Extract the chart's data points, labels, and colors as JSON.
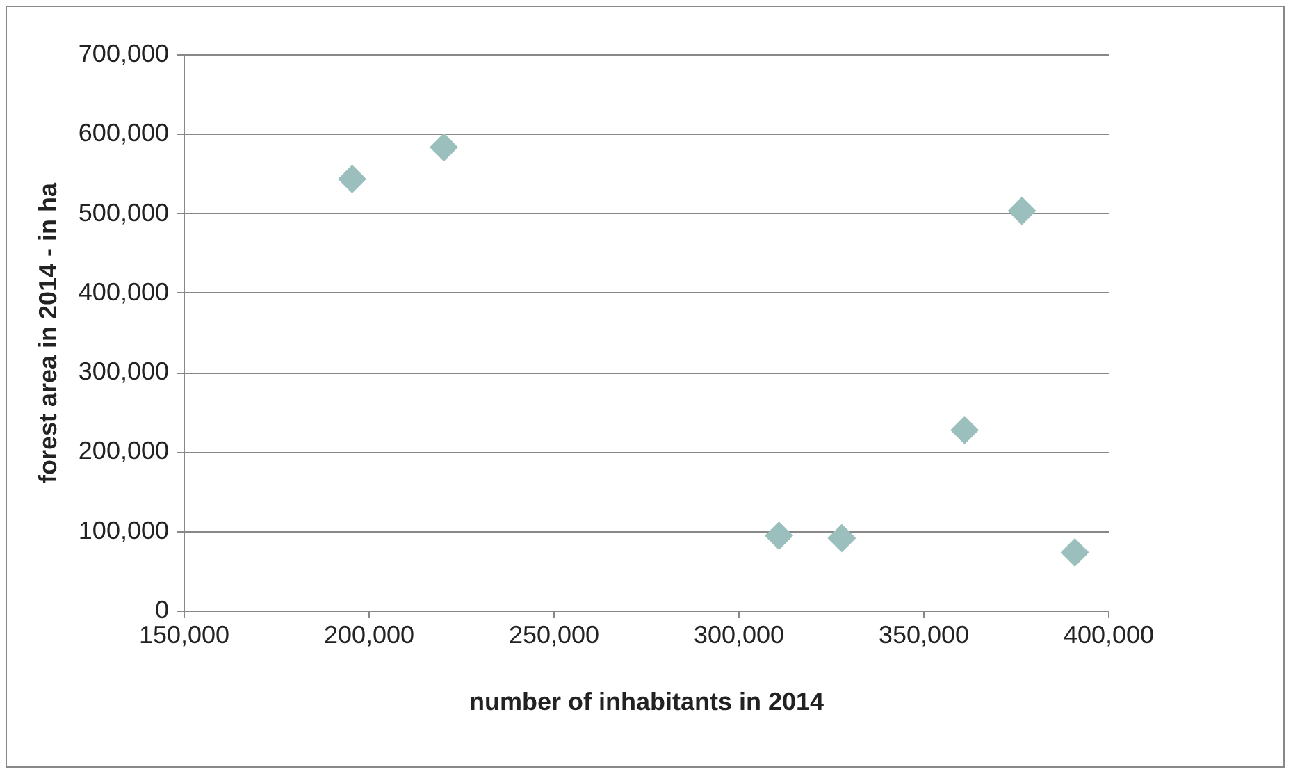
{
  "chart_data": {
    "type": "scatter",
    "xlabel": "number of inhabitants in 2014",
    "ylabel": "forest area in 2014 - in ha",
    "x": [
      195600,
      220400,
      311000,
      328000,
      361200,
      376700,
      391000
    ],
    "series": [
      {
        "color": "#9bbfbd",
        "values": [
          543000,
          583000,
          94000,
          91000,
          227000,
          503000,
          73000
        ]
      }
    ],
    "xlim": [
      150000,
      400000
    ],
    "xticks": [
      {
        "value": 150000,
        "label": "150,000"
      },
      {
        "value": 200000,
        "label": "200,000"
      },
      {
        "value": 250000,
        "label": "250,000"
      },
      {
        "value": 300000,
        "label": "300,000"
      },
      {
        "value": 350000,
        "label": "350,000"
      },
      {
        "value": 400000,
        "label": "400,000"
      }
    ],
    "ylim": [
      0,
      700000
    ],
    "yticks": [
      0,
      {
        "value": 100000,
        "label": "100,000"
      },
      {
        "value": 200000,
        "label": "200,000"
      },
      {
        "value": 300000,
        "label": "300,000"
      },
      {
        "value": 400000,
        "label": "400,000"
      },
      {
        "value": 500000,
        "label": "500,000"
      },
      {
        "value": 600000,
        "label": "600,000"
      },
      {
        "value": 700000,
        "label": "700,000"
      }
    ],
    "grid": "y",
    "marker": "diamond"
  }
}
